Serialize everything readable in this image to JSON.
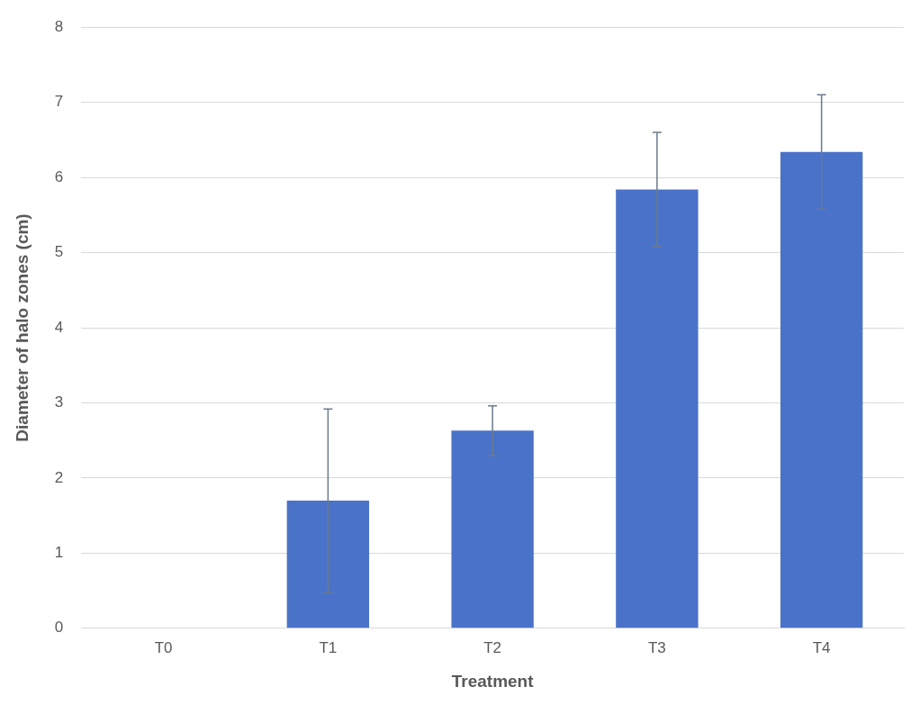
{
  "chart_data": {
    "type": "bar",
    "xlabel": "Treatment",
    "ylabel": "Diameter of halo zones (cm)",
    "categories": [
      "T0",
      "T1",
      "T2",
      "T3",
      "T4"
    ],
    "values": [
      0,
      1.7,
      2.63,
      5.84,
      6.34
    ],
    "errors": [
      null,
      1.22,
      0.33,
      0.76,
      0.76
    ],
    "color": "#4a72c8",
    "ylim": [
      0,
      8
    ],
    "yticks": [
      0,
      1,
      2,
      3,
      4,
      5,
      6,
      7,
      8
    ],
    "grid": "y",
    "legend": false
  }
}
